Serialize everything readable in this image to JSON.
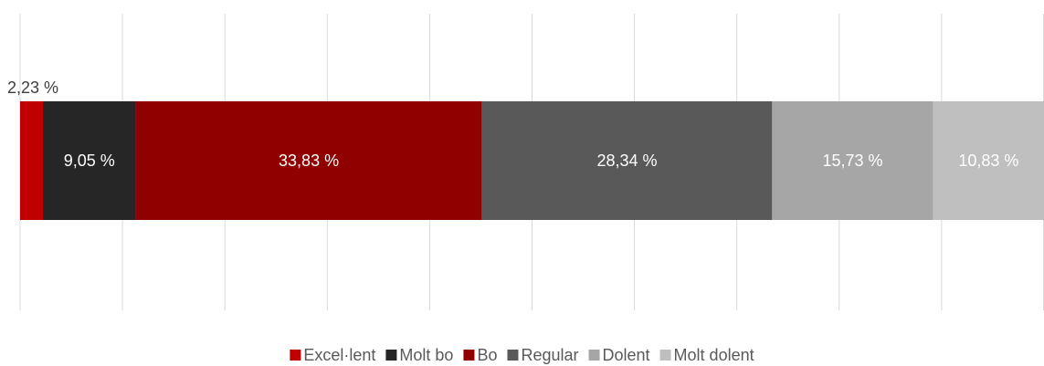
{
  "chart_data": {
    "type": "stacked_bar",
    "orientation": "horizontal",
    "categories": [
      null
    ],
    "series": [
      {
        "name": "Excel·lent",
        "color": "#c00000",
        "values": [
          2.23
        ],
        "value_labels": [
          "2,23 %"
        ]
      },
      {
        "name": "Molt bo",
        "color": "#262626",
        "values": [
          9.05
        ],
        "value_labels": [
          "9,05 %"
        ]
      },
      {
        "name": "Bo",
        "color": "#910000",
        "values": [
          33.83
        ],
        "value_labels": [
          "33,83 %"
        ]
      },
      {
        "name": "Regular",
        "color": "#595959",
        "values": [
          28.34
        ],
        "value_labels": [
          "28,34 %"
        ]
      },
      {
        "name": "Dolent",
        "color": "#a6a6a6",
        "values": [
          15.73
        ],
        "value_labels": [
          "15,73 %"
        ]
      },
      {
        "name": "Molt dolent",
        "color": "#bfbfbf",
        "values": [
          10.83
        ],
        "value_labels": [
          "10,83 %"
        ]
      }
    ],
    "xlim": [
      0,
      100
    ],
    "xticks": [
      0,
      10,
      20,
      30,
      40,
      50,
      60,
      70,
      80,
      90,
      100
    ],
    "grid": true,
    "legend": "bottom"
  }
}
